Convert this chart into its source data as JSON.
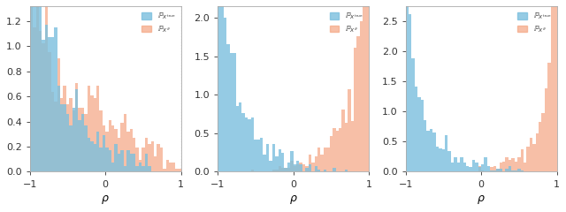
{
  "blue_color": "#7bbfde",
  "red_color": "#f4a582",
  "blue_alpha": 0.8,
  "red_alpha": 0.7,
  "n_bins": 50,
  "figsize": [
    6.4,
    2.4
  ],
  "dpi": 100,
  "panel1": {
    "ylim": [
      0,
      1.32
    ],
    "yticks": [
      0.0,
      0.2,
      0.4,
      0.6,
      0.8,
      1.0,
      1.2
    ],
    "blue_seed": 10,
    "red_seed": 20,
    "blue_dist": "beta_left",
    "blue_params": [
      0.55,
      2.8
    ],
    "red_params": [
      0.75,
      1.8
    ]
  },
  "panel2": {
    "ylim": [
      0,
      2.15
    ],
    "yticks": [
      0.0,
      0.5,
      1.0,
      1.5,
      2.0
    ],
    "blue_dist": "beta_left",
    "blue_params": [
      0.5,
      3.5
    ],
    "red_dist": "beta_right",
    "red_params": [
      4.0,
      0.45
    ]
  },
  "panel3": {
    "ylim": [
      0,
      2.75
    ],
    "yticks": [
      0.0,
      0.5,
      1.0,
      1.5,
      2.0,
      2.5
    ],
    "blue_dist": "beta_left",
    "blue_params": [
      0.4,
      3.5
    ],
    "red_dist": "beta_right",
    "red_params": [
      5.0,
      0.35
    ]
  }
}
